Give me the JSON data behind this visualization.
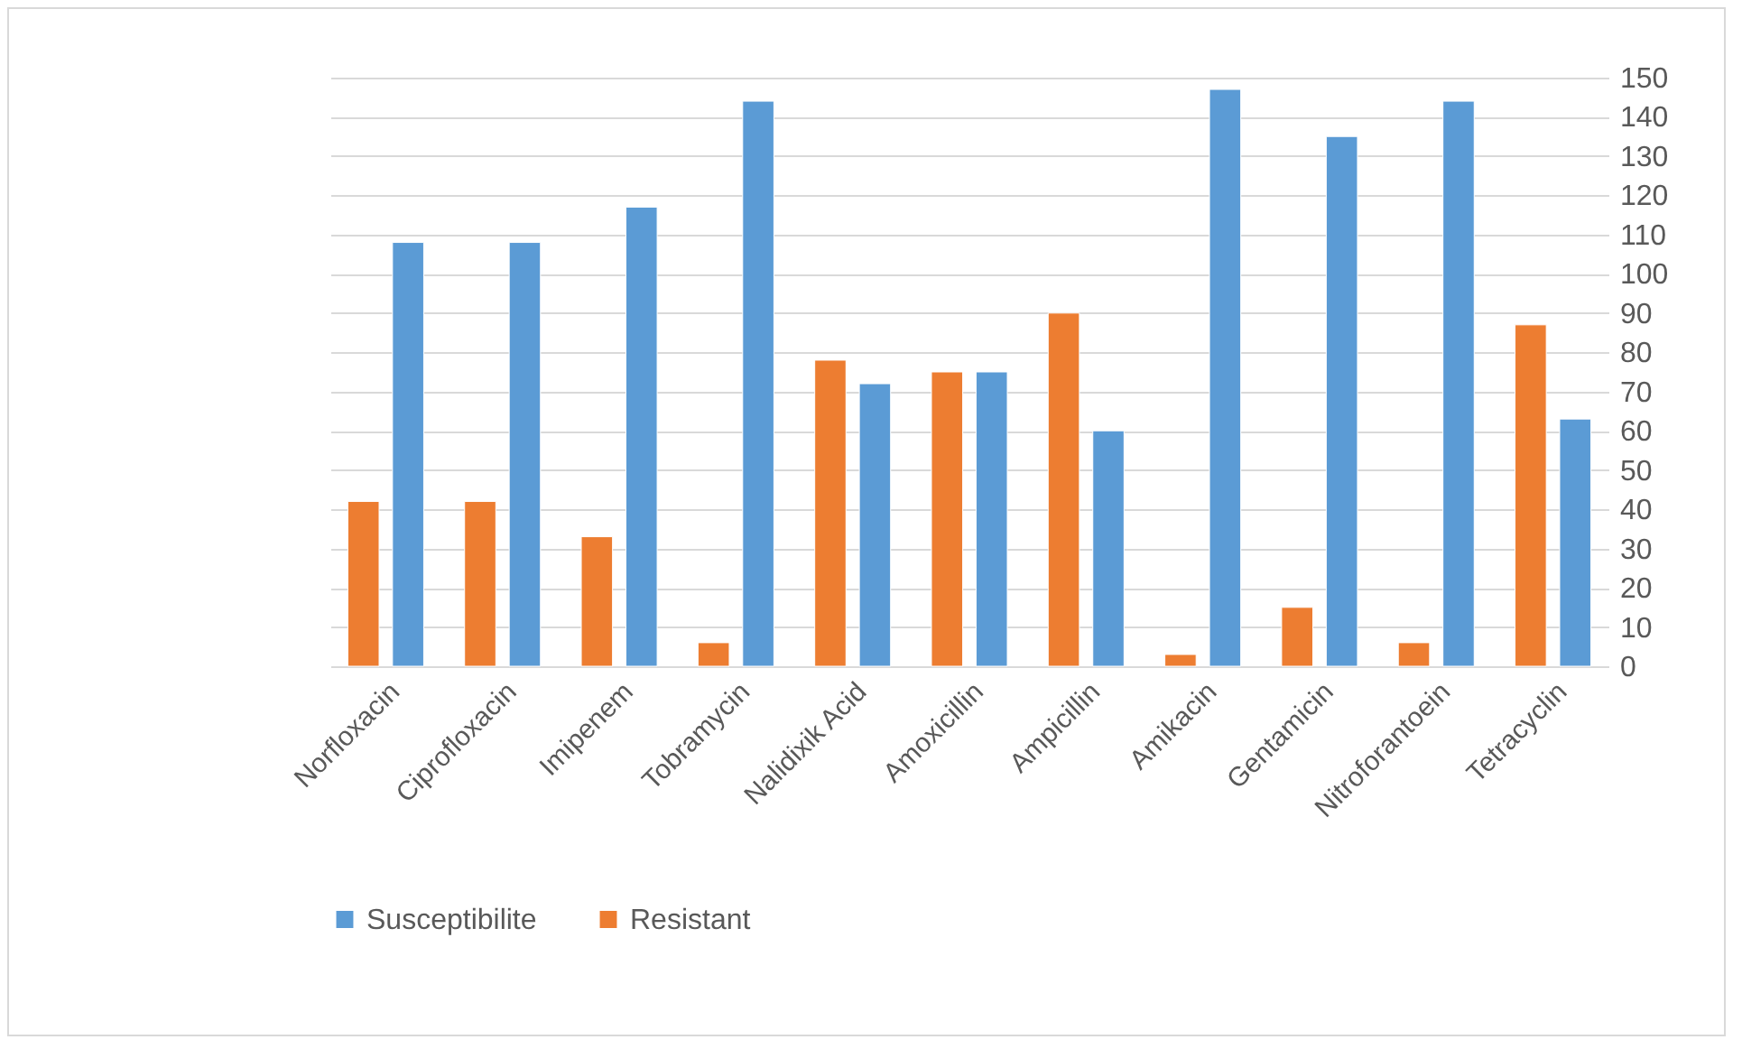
{
  "chart_data": {
    "type": "bar",
    "categories": [
      "Norfloxacin",
      "Ciprofloxacin",
      "Imipenem",
      "Tobramycin",
      "Nalidixik Acid",
      "Amoxicillin",
      "Ampicillin",
      "Amikacin",
      "Gentamicin",
      "Nitroforantoein",
      "Tetracyclin"
    ],
    "series": [
      {
        "name": "Susceptibilite",
        "color": "#5b9bd5",
        "values": [
          108,
          108,
          117,
          144,
          72,
          75,
          60,
          147,
          135,
          144,
          63
        ]
      },
      {
        "name": "Resistant",
        "color": "#ed7d31",
        "values": [
          42,
          42,
          33,
          6,
          78,
          75,
          90,
          3,
          15,
          6,
          87
        ]
      }
    ],
    "ylim": [
      0,
      150
    ],
    "yticks": [
      0,
      10,
      20,
      30,
      40,
      50,
      60,
      70,
      80,
      90,
      100,
      110,
      120,
      130,
      140,
      150
    ],
    "grid": "y",
    "legend": "bottom"
  }
}
